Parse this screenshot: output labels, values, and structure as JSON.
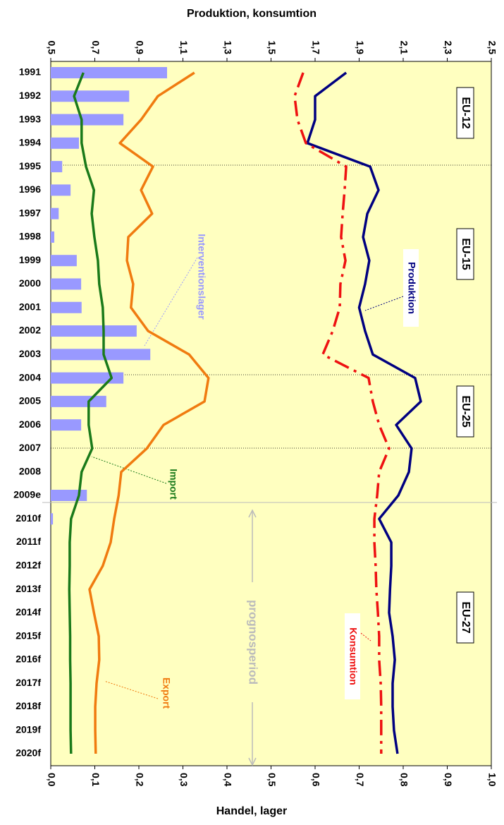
{
  "chart_data": {
    "type": "line",
    "x_label": "Handel, lager",
    "y2_label": "Produktion, konsumtion",
    "categories": [
      "1991",
      "1992",
      "1993",
      "1994",
      "1995",
      "1996",
      "1997",
      "1998",
      "1999",
      "2000",
      "2001",
      "2002",
      "2003",
      "2004",
      "2005",
      "2006",
      "2007",
      "2008",
      "2009e",
      "2010f",
      "2011f",
      "2012f",
      "2013f",
      "2014f",
      "2015f",
      "2016f",
      "2017f",
      "2018f",
      "2019f",
      "2020f"
    ],
    "xlim": [
      0,
      1
    ],
    "xticks": [
      {
        "value": 0,
        "label": "0,0"
      },
      {
        "value": 0.1,
        "label": "0,1"
      },
      {
        "value": 0.2,
        "label": "0,2"
      },
      {
        "value": 0.3,
        "label": "0,3"
      },
      {
        "value": 0.4,
        "label": "0,4"
      },
      {
        "value": 0.5,
        "label": "0,5"
      },
      {
        "value": 0.6,
        "label": "0,6"
      },
      {
        "value": 0.7,
        "label": "0,7"
      },
      {
        "value": 0.8,
        "label": "0,8"
      },
      {
        "value": 0.9,
        "label": "0,9"
      },
      {
        "value": 1,
        "label": "1,0"
      }
    ],
    "x2lim": [
      0.5,
      2.5
    ],
    "x2ticks": [
      {
        "value": 0.5,
        "label": "0,5"
      },
      {
        "value": 0.7,
        "label": "0,7"
      },
      {
        "value": 0.9,
        "label": "0,9"
      },
      {
        "value": 1.1,
        "label": "1,1"
      },
      {
        "value": 1.3,
        "label": "1,3"
      },
      {
        "value": 1.5,
        "label": "1,5"
      },
      {
        "value": 1.7,
        "label": "1,7"
      },
      {
        "value": 1.9,
        "label": "1,9"
      },
      {
        "value": 2.1,
        "label": "2,1"
      },
      {
        "value": 2.3,
        "label": "2,3"
      },
      {
        "value": 2.5,
        "label": "2,5"
      }
    ],
    "series": [
      {
        "name": "Interventionslager",
        "type": "bar",
        "axis": "x",
        "color": "#9999ff",
        "values": [
          0.264,
          0.178,
          0.165,
          0.064,
          0.026,
          0.045,
          0.018,
          0.008,
          0.059,
          0.069,
          0.07,
          0.195,
          0.226,
          0.165,
          0.126,
          0.069,
          0,
          0,
          0.082,
          0.005,
          0,
          0,
          0,
          0,
          0,
          0,
          0,
          0,
          0,
          0
        ]
      },
      {
        "name": "Import",
        "axis": "x",
        "color": "#1a7a1a",
        "values": [
          0.074,
          0.053,
          0.07,
          0.07,
          0.08,
          0.098,
          0.093,
          0.099,
          0.107,
          0.11,
          0.118,
          0.12,
          0.12,
          0.138,
          0.086,
          0.086,
          0.094,
          0.07,
          0.064,
          0.046,
          0.043,
          0.043,
          0.042,
          0.043,
          0.044,
          0.044,
          0.045,
          0.045,
          0.045,
          0.046
        ]
      },
      {
        "name": "Export",
        "axis": "x",
        "color": "#f07b10",
        "values": [
          0.326,
          0.243,
          0.205,
          0.157,
          0.232,
          0.205,
          0.23,
          0.176,
          0.173,
          0.187,
          0.182,
          0.221,
          0.314,
          0.358,
          0.349,
          0.256,
          0.218,
          0.16,
          0.154,
          0.144,
          0.136,
          0.118,
          0.088,
          0.098,
          0.109,
          0.11,
          0.104,
          0.101,
          0.101,
          0.102
        ]
      },
      {
        "name": "Produktion",
        "axis": "x2",
        "color": "#000080",
        "values": [
          1.841,
          1.7,
          1.7,
          1.665,
          1.95,
          1.988,
          1.937,
          1.918,
          1.946,
          1.927,
          1.9,
          1.927,
          1.962,
          2.154,
          2.18,
          2.068,
          2.138,
          2.126,
          2.078,
          1.991,
          2.046,
          2.046,
          2.04,
          2.036,
          2.052,
          2.062,
          2.052,
          2.052,
          2.058,
          2.074
        ]
      },
      {
        "name": "Konsumtion",
        "axis": "x2",
        "color": "#ee1111",
        "dash": true,
        "values": [
          1.646,
          1.607,
          1.62,
          1.658,
          1.841,
          1.834,
          1.825,
          1.818,
          1.838,
          1.815,
          1.812,
          1.78,
          1.735,
          1.943,
          1.962,
          1.991,
          2.036,
          1.991,
          1.982,
          1.969,
          1.969,
          1.975,
          1.978,
          1.985,
          1.991,
          1.991,
          1.998,
          2.0,
          2.0,
          2.0
        ]
      }
    ],
    "annotations": [
      "EU-12",
      "EU-15",
      "EU-25",
      "EU-27",
      "prognosperiod"
    ]
  }
}
